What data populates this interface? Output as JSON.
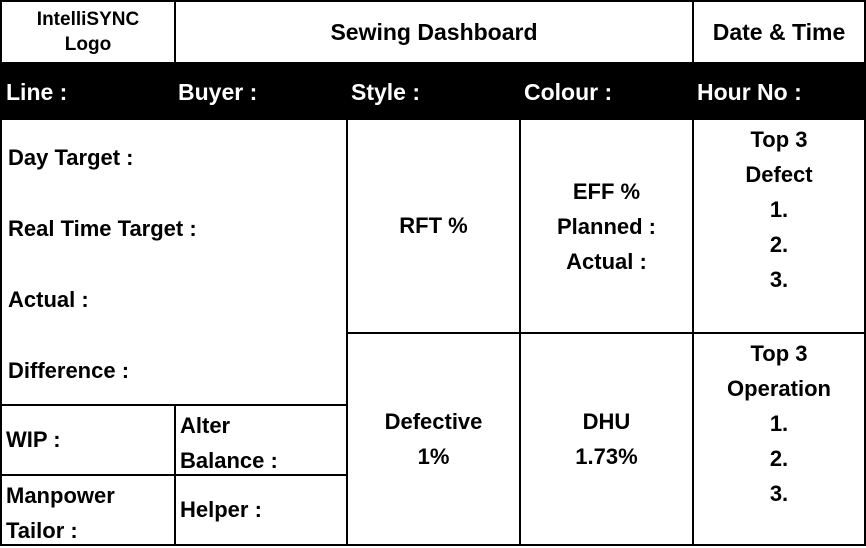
{
  "header": {
    "logo_line1": "IntelliSYNC",
    "logo_line2": "Logo",
    "title": "Sewing Dashboard",
    "datetime": "Date & Time"
  },
  "infobar": {
    "line": "Line :",
    "buyer": "Buyer :",
    "style": "Style :",
    "colour": "Colour :",
    "hour": "Hour No :"
  },
  "targets": {
    "day_target": "Day Target :",
    "real_time_target": "Real Time Target :",
    "actual": "Actual :",
    "difference": "Difference :"
  },
  "bottom_left": {
    "wip": "WIP :",
    "alter_line1": "Alter",
    "alter_line2": "Balance :",
    "manpower_line1": "Manpower",
    "manpower_line2": "Tailor :",
    "helper": "Helper :"
  },
  "metrics": {
    "rft": "RFT %",
    "eff_title": "EFF %",
    "eff_planned": "Planned :",
    "eff_actual": "Actual :",
    "defective_label": "Defective",
    "defective_value": "1%",
    "dhu_label": "DHU",
    "dhu_value": "1.73%"
  },
  "top_defect": {
    "title_line1": "Top 3",
    "title_line2": "Defect",
    "items": [
      "1.",
      "2.",
      "3."
    ]
  },
  "top_operation": {
    "title_line1": "Top 3",
    "title_line2": "Operation",
    "items": [
      "1.",
      "2.",
      "3."
    ]
  }
}
